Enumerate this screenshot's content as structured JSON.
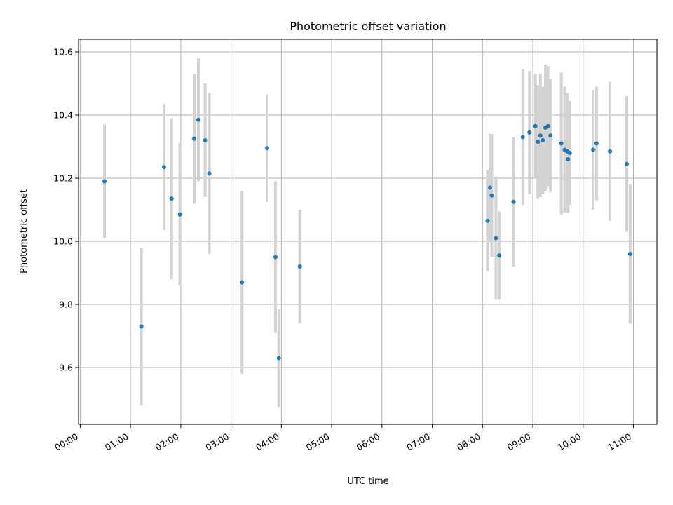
{
  "chart_data": {
    "type": "scatter",
    "title": "Photometric offset variation",
    "xlabel": "UTC time",
    "ylabel": "Photometric offset",
    "x_ticks": [
      "00:00",
      "01:00",
      "02:00",
      "03:00",
      "04:00",
      "05:00",
      "06:00",
      "07:00",
      "08:00",
      "09:00",
      "10:00",
      "11:00"
    ],
    "y_ticks": [
      "9.6",
      "9.8",
      "10.0",
      "10.2",
      "10.4",
      "10.6"
    ],
    "xlim": [
      "-00:02",
      "11:28"
    ],
    "ylim": [
      9.42,
      10.64
    ],
    "grid": true,
    "point_color": "#1f77b4",
    "errorbar_color": "#d3d3d3",
    "points": [
      {
        "x": "00:29",
        "y": 10.19,
        "yerr": 0.18
      },
      {
        "x": "01:13",
        "y": 9.73,
        "yerr": 0.25
      },
      {
        "x": "01:40",
        "y": 10.235,
        "yerr": 0.2
      },
      {
        "x": "01:49",
        "y": 10.135,
        "yerr": 0.255
      },
      {
        "x": "01:59",
        "y": 10.085,
        "yerr": 0.225
      },
      {
        "x": "02:16",
        "y": 10.325,
        "yerr": 0.205
      },
      {
        "x": "02:21",
        "y": 10.385,
        "yerr": 0.195
      },
      {
        "x": "02:29",
        "y": 10.32,
        "yerr": 0.18
      },
      {
        "x": "02:34",
        "y": 10.215,
        "yerr": 0.255
      },
      {
        "x": "03:13",
        "y": 9.87,
        "yerr": 0.29
      },
      {
        "x": "03:43",
        "y": 10.295,
        "yerr": 0.17
      },
      {
        "x": "03:53",
        "y": 9.95,
        "yerr": 0.24
      },
      {
        "x": "03:57",
        "y": 9.63,
        "yerr": 0.155
      },
      {
        "x": "04:22",
        "y": 9.92,
        "yerr": 0.18
      },
      {
        "x": "08:06",
        "y": 10.065,
        "yerr": 0.16
      },
      {
        "x": "08:09",
        "y": 10.17,
        "yerr": 0.17
      },
      {
        "x": "08:11",
        "y": 10.145,
        "yerr": 0.195
      },
      {
        "x": "08:16",
        "y": 10.01,
        "yerr": 0.195
      },
      {
        "x": "08:20",
        "y": 9.955,
        "yerr": 0.14
      },
      {
        "x": "08:37",
        "y": 10.125,
        "yerr": 0.205
      },
      {
        "x": "08:48",
        "y": 10.33,
        "yerr": 0.215
      },
      {
        "x": "08:56",
        "y": 10.345,
        "yerr": 0.195
      },
      {
        "x": "09:03",
        "y": 10.365,
        "yerr": 0.165
      },
      {
        "x": "09:06",
        "y": 10.315,
        "yerr": 0.18
      },
      {
        "x": "09:09",
        "y": 10.335,
        "yerr": 0.195
      },
      {
        "x": "09:12",
        "y": 10.32,
        "yerr": 0.17
      },
      {
        "x": "09:15",
        "y": 10.36,
        "yerr": 0.2
      },
      {
        "x": "09:18",
        "y": 10.365,
        "yerr": 0.19
      },
      {
        "x": "09:21",
        "y": 10.335,
        "yerr": 0.18
      },
      {
        "x": "09:34",
        "y": 10.31,
        "yerr": 0.225
      },
      {
        "x": "09:38",
        "y": 10.29,
        "yerr": 0.2
      },
      {
        "x": "09:41",
        "y": 10.285,
        "yerr": 0.185
      },
      {
        "x": "09:42",
        "y": 10.26,
        "yerr": 0.17
      },
      {
        "x": "09:44",
        "y": 10.28,
        "yerr": 0.165
      },
      {
        "x": "10:12",
        "y": 10.29,
        "yerr": 0.19
      },
      {
        "x": "10:16",
        "y": 10.31,
        "yerr": 0.18
      },
      {
        "x": "10:32",
        "y": 10.285,
        "yerr": 0.22
      },
      {
        "x": "10:52",
        "y": 10.245,
        "yerr": 0.215
      },
      {
        "x": "10:56",
        "y": 9.96,
        "yerr": 0.22
      }
    ]
  }
}
